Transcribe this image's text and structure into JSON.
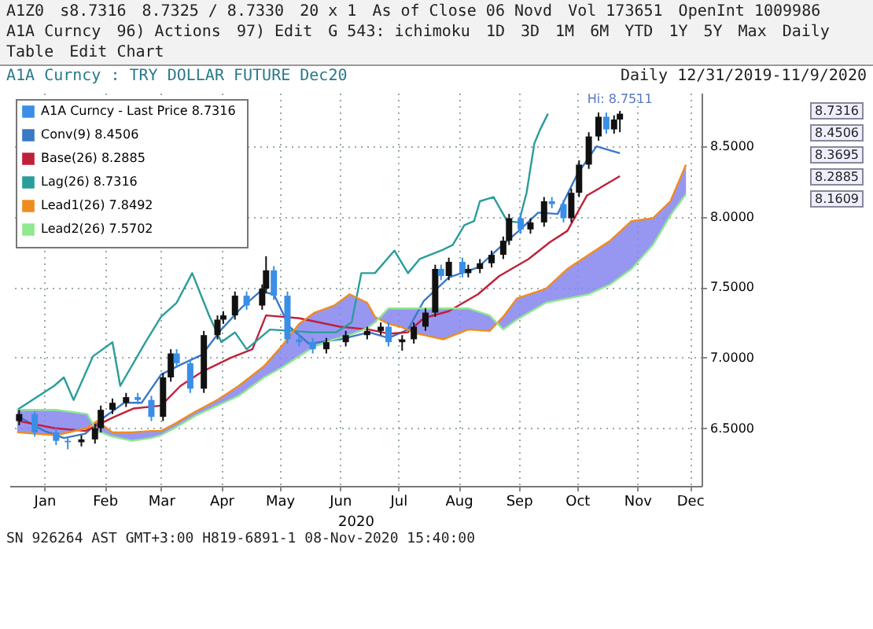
{
  "chart_data": {
    "type": "candlestick",
    "title": "A1A Curncy : TRY DOLLAR FUTURE Dec20",
    "subtitle": "Daily 12/31/2019-11/9/2020",
    "xlabel": "2020",
    "annotations": [
      "A1Z0",
      "s8.7316",
      "8.7325 / 8.7330",
      "20 x 1",
      "As of Close 06 Novd",
      "Vol 173651",
      "OpenInt 1009986",
      "A1A Curncy",
      "96) Actions",
      "97) Edit",
      "G 543: ichimoku",
      "1D",
      "3D",
      "1M",
      "6M",
      "YTD",
      "1Y",
      "5Y",
      "Max",
      "Daily",
      "Table",
      "Edit Chart",
      {
        "text": "Hi: 8.7511",
        "x": "2020-11-06",
        "y": 8.7511
      },
      "8.7316",
      "8.4506",
      "8.3695",
      "8.2885",
      "8.1609",
      "SN 926264 AST GMT+3:00 H819-6891-1 08-Nov-2020 15:40:00"
    ],
    "xlim": [
      "2019-12-28",
      "2020-12-18"
    ],
    "xticks": [
      {
        "value": "2020-01-15",
        "label": "Jan"
      },
      {
        "value": "2020-02-15",
        "label": "Feb"
      },
      {
        "value": "2020-03-15",
        "label": "Mar"
      },
      {
        "value": "2020-04-15",
        "label": "Apr"
      },
      {
        "value": "2020-05-15",
        "label": "May"
      },
      {
        "value": "2020-06-15",
        "label": "Jun"
      },
      {
        "value": "2020-07-15",
        "label": "Jul"
      },
      {
        "value": "2020-08-15",
        "label": "Aug"
      },
      {
        "value": "2020-09-15",
        "label": "Sep"
      },
      {
        "value": "2020-10-15",
        "label": "Oct"
      },
      {
        "value": "2020-11-15",
        "label": "Nov"
      },
      {
        "value": "2020-12-12",
        "label": "Dec"
      }
    ],
    "ylim": [
      6.09,
      8.88
    ],
    "yticks": [
      {
        "value": 6.5,
        "label": "6.5000"
      },
      {
        "value": 7,
        "label": "7.0000"
      },
      {
        "value": 7.5,
        "label": "7.5000"
      },
      {
        "value": 8,
        "label": "8.0000"
      },
      {
        "value": 8.5,
        "label": "8.5000"
      }
    ],
    "grid": true,
    "legend": "top left",
    "series": [
      {
        "name": "A1A Curncy - Last Price  8.7316",
        "color": "#3a8ee6",
        "x": [
          "2020-01-02",
          "2020-01-10",
          "2020-01-21",
          "2020-01-27",
          "2020-02-03",
          "2020-02-10",
          "2020-02-13",
          "2020-02-19",
          "2020-02-26",
          "2020-03-03",
          "2020-03-10",
          "2020-03-16",
          "2020-03-20",
          "2020-03-23",
          "2020-03-30",
          "2020-04-06",
          "2020-04-13",
          "2020-04-16",
          "2020-04-22",
          "2020-04-28",
          "2020-05-06",
          "2020-05-08",
          "2020-05-12",
          "2020-05-19",
          "2020-05-25",
          "2020-06-01",
          "2020-06-08",
          "2020-06-18",
          "2020-06-29",
          "2020-07-06",
          "2020-07-10",
          "2020-07-17",
          "2020-07-23",
          "2020-07-29",
          "2020-08-03",
          "2020-08-06",
          "2020-08-10",
          "2020-08-17",
          "2020-08-20",
          "2020-08-26",
          "2020-09-01",
          "2020-09-07",
          "2020-09-10",
          "2020-09-16",
          "2020-09-21",
          "2020-09-28",
          "2020-10-02",
          "2020-10-08",
          "2020-10-12",
          "2020-10-16",
          "2020-10-21",
          "2020-10-26",
          "2020-10-30",
          "2020-11-03",
          "2020-11-06"
        ],
        "ohlc": [
          [
            6.55,
            6.63,
            6.52,
            6.6
          ],
          [
            6.6,
            6.62,
            6.44,
            6.47
          ],
          [
            6.47,
            6.5,
            6.38,
            6.41
          ],
          [
            6.41,
            6.44,
            6.35,
            6.4
          ],
          [
            6.4,
            6.45,
            6.37,
            6.42
          ],
          [
            6.42,
            6.53,
            6.39,
            6.5
          ],
          [
            6.5,
            6.66,
            6.47,
            6.63
          ],
          [
            6.63,
            6.71,
            6.6,
            6.68
          ],
          [
            6.68,
            6.75,
            6.65,
            6.72
          ],
          [
            6.72,
            6.75,
            6.67,
            6.7
          ],
          [
            6.7,
            6.73,
            6.55,
            6.58
          ],
          [
            6.58,
            6.89,
            6.55,
            6.86
          ],
          [
            6.86,
            7.06,
            6.83,
            7.03
          ],
          [
            7.03,
            7.06,
            6.93,
            6.96
          ],
          [
            6.96,
            6.99,
            6.75,
            6.78
          ],
          [
            6.78,
            7.19,
            6.75,
            7.16
          ],
          [
            7.16,
            7.3,
            7.13,
            7.27
          ],
          [
            7.27,
            7.33,
            7.24,
            7.3
          ],
          [
            7.3,
            7.47,
            7.27,
            7.44
          ],
          [
            7.44,
            7.47,
            7.34,
            7.37
          ],
          [
            7.37,
            7.52,
            7.34,
            7.49
          ],
          [
            7.49,
            7.72,
            7.46,
            7.62
          ],
          [
            7.62,
            7.65,
            7.41,
            7.44
          ],
          [
            7.44,
            7.47,
            7.1,
            7.13
          ],
          [
            7.13,
            7.16,
            7.08,
            7.11
          ],
          [
            7.11,
            7.14,
            7.03,
            7.06
          ],
          [
            7.06,
            7.14,
            7.03,
            7.11
          ],
          [
            7.11,
            7.19,
            7.08,
            7.16
          ],
          [
            7.16,
            7.22,
            7.13,
            7.19
          ],
          [
            7.19,
            7.25,
            7.16,
            7.22
          ],
          [
            7.22,
            7.25,
            7.08,
            7.11
          ],
          [
            7.11,
            7.16,
            7.05,
            7.13
          ],
          [
            7.13,
            7.25,
            7.1,
            7.22
          ],
          [
            7.22,
            7.35,
            7.19,
            7.32
          ],
          [
            7.32,
            7.66,
            7.29,
            7.63
          ],
          [
            7.63,
            7.66,
            7.55,
            7.58
          ],
          [
            7.58,
            7.71,
            7.55,
            7.68
          ],
          [
            7.68,
            7.71,
            7.57,
            7.6
          ],
          [
            7.6,
            7.66,
            7.57,
            7.63
          ],
          [
            7.63,
            7.7,
            7.6,
            7.67
          ],
          [
            7.67,
            7.76,
            7.64,
            7.73
          ],
          [
            7.73,
            7.86,
            7.7,
            7.83
          ],
          [
            7.83,
            8.02,
            7.8,
            7.99
          ],
          [
            7.99,
            8.02,
            7.88,
            7.91
          ],
          [
            7.91,
            7.99,
            7.88,
            7.96
          ],
          [
            7.96,
            8.14,
            7.93,
            8.11
          ],
          [
            8.11,
            8.14,
            8.06,
            8.09
          ],
          [
            8.09,
            8.12,
            7.96,
            7.99
          ],
          [
            7.99,
            8.2,
            7.96,
            8.17
          ],
          [
            8.17,
            8.4,
            8.14,
            8.37
          ],
          [
            8.37,
            8.6,
            8.34,
            8.57
          ],
          [
            8.57,
            8.74,
            8.54,
            8.71
          ],
          [
            8.71,
            8.74,
            8.59,
            8.62
          ],
          [
            8.62,
            8.72,
            8.59,
            8.69
          ],
          [
            8.69,
            8.7511,
            8.6,
            8.7316
          ]
        ],
        "colors": [
          "#111111",
          "#3a8ee6",
          "#3a8ee6",
          "#3a8ee6",
          "#111111",
          "#111111",
          "#111111",
          "#111111",
          "#111111",
          "#3a8ee6",
          "#3a8ee6",
          "#111111",
          "#111111",
          "#3a8ee6",
          "#3a8ee6",
          "#111111",
          "#111111",
          "#111111",
          "#111111",
          "#3a8ee6",
          "#111111",
          "#111111",
          "#3a8ee6",
          "#3a8ee6",
          "#3a8ee6",
          "#3a8ee6",
          "#111111",
          "#111111",
          "#111111",
          "#111111",
          "#3a8ee6",
          "#111111",
          "#111111",
          "#111111",
          "#111111",
          "#3a8ee6",
          "#111111",
          "#3a8ee6",
          "#111111",
          "#111111",
          "#111111",
          "#111111",
          "#111111",
          "#3a8ee6",
          "#111111",
          "#111111",
          "#3a8ee6",
          "#3a8ee6",
          "#111111",
          "#111111",
          "#111111",
          "#111111",
          "#3a8ee6",
          "#111111",
          "#111111"
        ]
      },
      {
        "name": "Conv(9)  8.4506",
        "type": "line",
        "color": "#3a78c8",
        "x": [
          "2020-01-02",
          "2020-01-15",
          "2020-01-25",
          "2020-02-05",
          "2020-02-15",
          "2020-02-25",
          "2020-03-05",
          "2020-03-15",
          "2020-03-25",
          "2020-04-05",
          "2020-04-15",
          "2020-04-25",
          "2020-05-05",
          "2020-05-12",
          "2020-05-20",
          "2020-05-30",
          "2020-06-15",
          "2020-06-30",
          "2020-07-10",
          "2020-07-20",
          "2020-07-28",
          "2020-08-10",
          "2020-08-25",
          "2020-09-05",
          "2020-09-15",
          "2020-09-25",
          "2020-10-05",
          "2020-10-15",
          "2020-10-25",
          "2020-11-06"
        ],
        "values": [
          6.58,
          6.48,
          6.43,
          6.46,
          6.58,
          6.68,
          6.68,
          6.88,
          6.95,
          7.02,
          7.2,
          7.35,
          7.47,
          7.45,
          7.22,
          7.1,
          7.13,
          7.18,
          7.14,
          7.2,
          7.4,
          7.57,
          7.64,
          7.78,
          7.9,
          8.03,
          8.02,
          8.3,
          8.5,
          8.4506
        ]
      },
      {
        "name": "Base(26)  8.2885",
        "type": "line",
        "color": "#c0203a",
        "x": [
          "2020-01-02",
          "2020-01-20",
          "2020-02-05",
          "2020-02-20",
          "2020-03-01",
          "2020-03-15",
          "2020-03-25",
          "2020-04-05",
          "2020-04-20",
          "2020-05-01",
          "2020-05-08",
          "2020-05-25",
          "2020-06-15",
          "2020-06-30",
          "2020-07-10",
          "2020-07-20",
          "2020-07-28",
          "2020-08-10",
          "2020-08-25",
          "2020-09-05",
          "2020-09-20",
          "2020-10-01",
          "2020-10-10",
          "2020-10-20",
          "2020-11-06"
        ],
        "values": [
          6.55,
          6.5,
          6.48,
          6.58,
          6.64,
          6.66,
          6.8,
          6.9,
          7.0,
          7.06,
          7.3,
          7.28,
          7.22,
          7.2,
          7.17,
          7.18,
          7.28,
          7.33,
          7.45,
          7.58,
          7.7,
          7.82,
          7.9,
          8.15,
          8.2885
        ]
      },
      {
        "name": "Lag(26)  8.7316",
        "type": "line",
        "color": "#2a9d9a",
        "x": [
          "2020-01-01",
          "2020-01-20",
          "2020-01-25",
          "2020-01-30",
          "2020-02-09",
          "2020-02-19",
          "2020-02-23",
          "2020-03-07",
          "2020-03-15",
          "2020-03-23",
          "2020-03-31",
          "2020-04-09",
          "2020-04-15",
          "2020-04-22",
          "2020-04-28",
          "2020-05-10",
          "2020-05-21",
          "2020-05-31",
          "2020-06-13",
          "2020-06-21",
          "2020-06-26",
          "2020-07-03",
          "2020-07-13",
          "2020-07-20",
          "2020-07-26",
          "2020-08-06",
          "2020-08-12",
          "2020-08-18",
          "2020-08-23",
          "2020-08-26",
          "2020-09-02",
          "2020-09-09",
          "2020-09-15",
          "2020-09-19",
          "2020-09-23",
          "2020-09-26",
          "2020-09-30"
        ],
        "values": [
          6.63,
          6.8,
          6.86,
          6.7,
          7.01,
          7.11,
          6.8,
          7.11,
          7.29,
          7.39,
          7.6,
          7.29,
          7.11,
          7.18,
          7.06,
          7.2,
          7.19,
          7.18,
          7.18,
          7.25,
          7.6,
          7.6,
          7.76,
          7.6,
          7.7,
          7.76,
          7.8,
          7.94,
          7.97,
          8.11,
          8.14,
          7.97,
          7.96,
          8.17,
          8.52,
          8.62,
          8.7316
        ]
      },
      {
        "name": "Lead1(26)  7.8492",
        "type": "line",
        "color": "#f08c1e",
        "x": [
          "2020-01-01",
          "2020-01-21",
          "2020-02-06",
          "2020-02-11",
          "2020-02-19",
          "2020-02-29",
          "2020-03-10",
          "2020-03-15",
          "2020-03-22",
          "2020-04-02",
          "2020-04-13",
          "2020-04-24",
          "2020-05-07",
          "2020-05-16",
          "2020-05-25",
          "2020-06-02",
          "2020-06-12",
          "2020-06-20",
          "2020-06-29",
          "2020-07-03",
          "2020-07-10",
          "2020-07-16",
          "2020-07-25",
          "2020-08-07",
          "2020-08-20",
          "2020-08-31",
          "2020-09-07",
          "2020-09-14",
          "2020-09-29",
          "2020-10-10",
          "2020-10-21",
          "2020-11-01",
          "2020-11-12",
          "2020-11-23",
          "2020-12-02",
          "2020-12-10"
        ],
        "values": [
          6.47,
          6.45,
          6.5,
          6.55,
          6.47,
          6.47,
          6.48,
          6.48,
          6.53,
          6.62,
          6.7,
          6.8,
          6.94,
          7.08,
          7.24,
          7.32,
          7.37,
          7.45,
          7.39,
          7.29,
          7.24,
          7.22,
          7.17,
          7.13,
          7.2,
          7.19,
          7.29,
          7.42,
          7.49,
          7.63,
          7.73,
          7.83,
          7.97,
          7.99,
          8.11,
          8.3695
        ],
        "upper": [
          6.47,
          6.45,
          6.5,
          6.55,
          6.47,
          6.47,
          6.48,
          6.48,
          6.53,
          6.62,
          6.7,
          6.8,
          6.94,
          7.08,
          7.24,
          7.32,
          7.37,
          7.45,
          7.39,
          7.29,
          7.24,
          7.22,
          7.17,
          7.13,
          7.2,
          7.19,
          7.29,
          7.42,
          7.49,
          7.63,
          7.73,
          7.83,
          7.97,
          7.99,
          8.11,
          8.3695
        ],
        "lower": [
          6.63,
          6.63,
          6.6,
          6.48,
          6.44,
          6.41,
          6.43,
          6.45,
          6.5,
          6.59,
          6.66,
          6.73,
          6.86,
          6.93,
          7.01,
          7.08,
          7.13,
          7.16,
          7.21,
          7.25,
          7.35,
          7.35,
          7.35,
          7.35,
          7.35,
          7.3,
          7.2,
          7.27,
          7.39,
          7.42,
          7.45,
          7.52,
          7.63,
          7.8,
          8.01,
          8.1609
        ]
      },
      {
        "name": "Lead2(26)  7.5702",
        "type": "line",
        "color": "#90e890",
        "x": [
          "2020-01-01",
          "2020-01-21",
          "2020-02-06",
          "2020-02-11",
          "2020-02-19",
          "2020-02-29",
          "2020-03-10",
          "2020-03-15",
          "2020-03-22",
          "2020-04-02",
          "2020-04-13",
          "2020-04-24",
          "2020-05-07",
          "2020-05-16",
          "2020-05-25",
          "2020-06-02",
          "2020-06-12",
          "2020-06-20",
          "2020-06-29",
          "2020-07-03",
          "2020-07-10",
          "2020-07-16",
          "2020-07-25",
          "2020-08-07",
          "2020-08-20",
          "2020-08-31",
          "2020-09-07",
          "2020-09-14",
          "2020-09-29",
          "2020-10-10",
          "2020-10-21",
          "2020-11-01",
          "2020-11-12",
          "2020-11-23",
          "2020-12-02",
          "2020-12-10"
        ],
        "values": [
          6.63,
          6.63,
          6.6,
          6.48,
          6.44,
          6.41,
          6.43,
          6.45,
          6.5,
          6.59,
          6.66,
          6.73,
          6.86,
          6.93,
          7.01,
          7.08,
          7.13,
          7.16,
          7.21,
          7.25,
          7.35,
          7.35,
          7.35,
          7.35,
          7.35,
          7.3,
          7.2,
          7.27,
          7.39,
          7.42,
          7.45,
          7.52,
          7.63,
          7.8,
          8.01,
          8.1609
        ]
      }
    ]
  }
}
